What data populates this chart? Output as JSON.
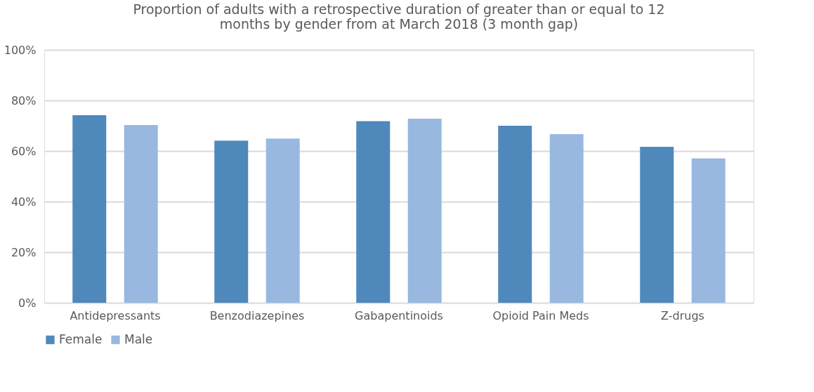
{
  "chart_data": {
    "type": "bar",
    "title": [
      "Proportion of adults with a retrospective duration of greater than or equal to 12",
      "months by gender from at March 2018 (3 month gap)"
    ],
    "categories": [
      "Antidepressants",
      "Benzodiazepines",
      "Gabapentinoids",
      "Opioid Pain Meds",
      "Z-drugs"
    ],
    "series": [
      {
        "name": "Female",
        "color": "#4f88bb",
        "values": [
          74.2,
          64.1,
          71.8,
          70.0,
          61.7
        ]
      },
      {
        "name": "Male",
        "color": "#98b8df",
        "values": [
          70.3,
          64.9,
          72.8,
          66.7,
          57.1
        ]
      }
    ],
    "ylim": [
      0,
      100
    ],
    "yticks": [
      {
        "value": 0,
        "label": "0%"
      },
      {
        "value": 20,
        "label": "20%"
      },
      {
        "value": 40,
        "label": "40%"
      },
      {
        "value": 60,
        "label": "60%"
      },
      {
        "value": 80,
        "label": "80%"
      },
      {
        "value": 100,
        "label": "100%"
      }
    ],
    "grid": "y",
    "legend": "bottom"
  }
}
